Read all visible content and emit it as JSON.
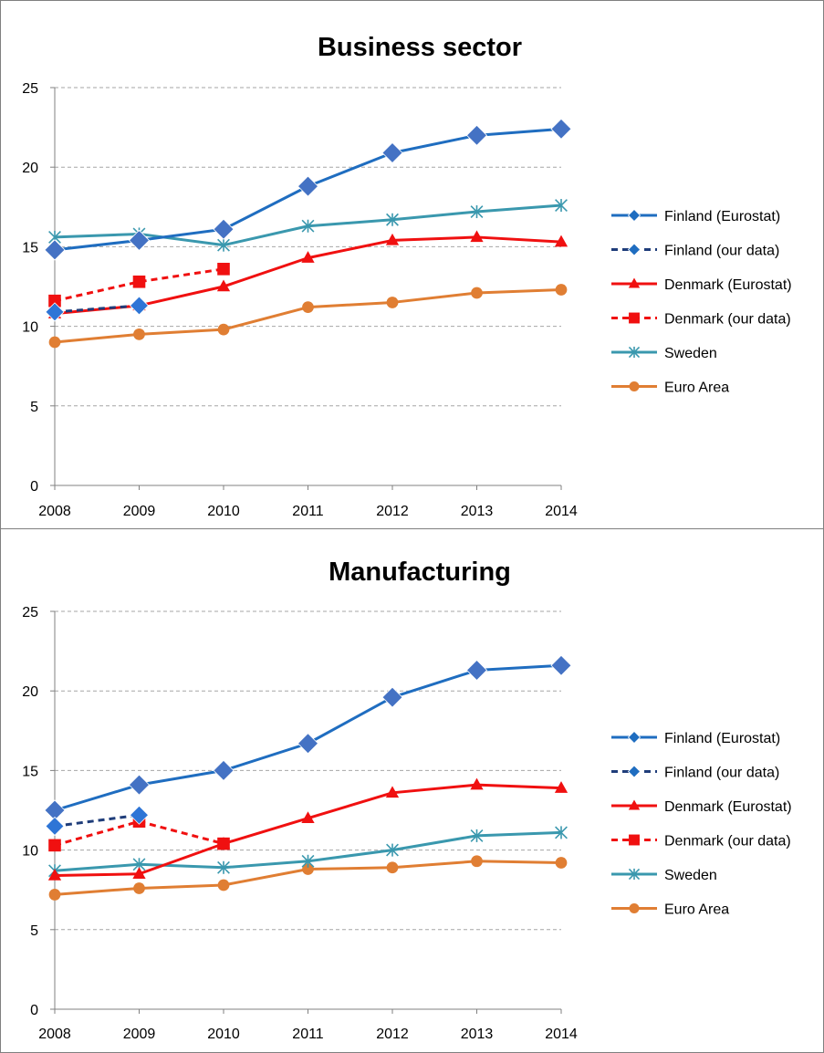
{
  "chart_data": [
    {
      "type": "line",
      "title": "Business  sector",
      "x": [
        "2008",
        "2009",
        "2010",
        "2011",
        "2012",
        "2013",
        "2014"
      ],
      "ylim": [
        0,
        25
      ],
      "yticks": [
        "0",
        "5",
        "10",
        "15",
        "20",
        "25"
      ],
      "grid": "horizontal dashed",
      "legend_position": "right",
      "series": [
        {
          "name": "Finland (Eurostat)",
          "color": "#1F6DC0",
          "dash": false,
          "marker": "diamond",
          "values": [
            14.8,
            15.4,
            16.1,
            18.8,
            20.9,
            22.0,
            22.4
          ]
        },
        {
          "name": "Finland (our data)",
          "color": "#1F3D7A",
          "dash": true,
          "marker": "diamond",
          "values": [
            10.9,
            11.3,
            null,
            null,
            null,
            null,
            null
          ]
        },
        {
          "name": "Denmark (Eurostat)",
          "color": "#F01010",
          "dash": false,
          "marker": "triangle",
          "values": [
            10.8,
            11.3,
            12.5,
            14.3,
            15.4,
            15.6,
            15.3
          ]
        },
        {
          "name": "Denmark (our data)",
          "color": "#F01010",
          "dash": true,
          "marker": "square",
          "values": [
            11.6,
            12.8,
            13.6,
            null,
            null,
            null,
            null
          ]
        },
        {
          "name": "Sweden",
          "color": "#3A98AE",
          "dash": false,
          "marker": "star",
          "values": [
            15.6,
            15.8,
            15.1,
            16.3,
            16.7,
            17.2,
            17.6
          ]
        },
        {
          "name": "Euro Area",
          "color": "#E07E33",
          "dash": false,
          "marker": "circle",
          "values": [
            9.0,
            9.5,
            9.8,
            11.2,
            11.5,
            12.1,
            12.3
          ]
        }
      ]
    },
    {
      "type": "line",
      "title": "Manufacturing",
      "x": [
        "2008",
        "2009",
        "2010",
        "2011",
        "2012",
        "2013",
        "2014"
      ],
      "ylim": [
        0,
        25
      ],
      "yticks": [
        "0",
        "5",
        "10",
        "15",
        "20",
        "25"
      ],
      "grid": "horizontal dashed",
      "legend_position": "right",
      "series": [
        {
          "name": "Finland (Eurostat)",
          "color": "#1F6DC0",
          "dash": false,
          "marker": "diamond",
          "values": [
            12.5,
            14.1,
            15.0,
            16.7,
            19.6,
            21.3,
            21.6
          ]
        },
        {
          "name": "Finland (our data)",
          "color": "#1F3D7A",
          "dash": true,
          "marker": "diamond",
          "values": [
            11.5,
            12.2,
            null,
            null,
            null,
            null,
            null
          ]
        },
        {
          "name": "Denmark (Eurostat)",
          "color": "#F01010",
          "dash": false,
          "marker": "triangle",
          "values": [
            8.4,
            8.5,
            10.4,
            12.0,
            13.6,
            14.1,
            13.9
          ]
        },
        {
          "name": "Denmark (our data)",
          "color": "#F01010",
          "dash": true,
          "marker": "square",
          "values": [
            10.3,
            11.8,
            10.4,
            null,
            null,
            null,
            null
          ]
        },
        {
          "name": "Sweden",
          "color": "#3A98AE",
          "dash": false,
          "marker": "star",
          "values": [
            8.7,
            9.1,
            8.9,
            9.3,
            10.0,
            10.9,
            11.1
          ]
        },
        {
          "name": "Euro Area",
          "color": "#E07E33",
          "dash": false,
          "marker": "circle",
          "values": [
            7.2,
            7.6,
            7.8,
            8.8,
            8.9,
            9.3,
            9.2
          ]
        }
      ]
    }
  ]
}
